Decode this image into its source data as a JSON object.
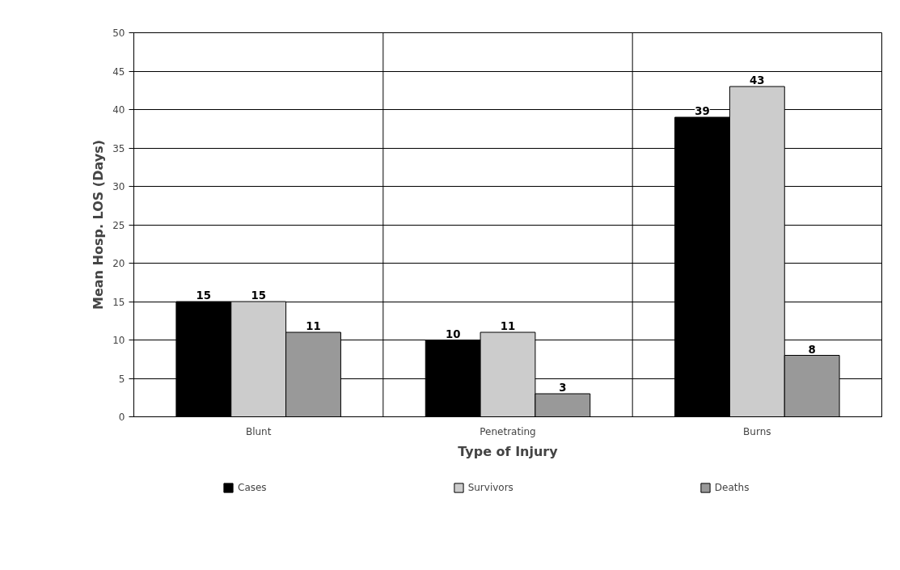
{
  "chart_data": {
    "type": "bar",
    "xlabel": "Type of Injury",
    "ylabel": "Mean Hosp. LOS (Days)",
    "categories": [
      "Blunt",
      "Penetrating",
      "Burns"
    ],
    "series": [
      {
        "name": "Cases",
        "color": "#000000",
        "values": [
          15,
          10,
          39
        ]
      },
      {
        "name": "Survivors",
        "color": "#cccccc",
        "values": [
          15,
          11,
          43
        ]
      },
      {
        "name": "Deaths",
        "color": "#999999",
        "values": [
          11,
          3,
          8
        ]
      }
    ],
    "ylim": [
      0,
      50
    ],
    "yticks": [
      0,
      5,
      10,
      15,
      20,
      25,
      30,
      35,
      40,
      45,
      50
    ],
    "grid": true,
    "legend": "bottom",
    "data_labels": true
  }
}
